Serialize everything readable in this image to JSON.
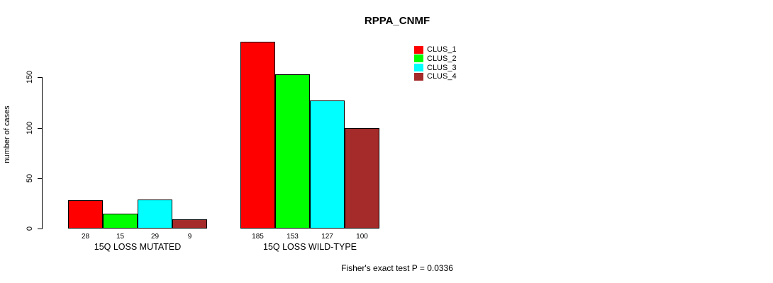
{
  "title": "RPPA_CNMF",
  "footer": "Fisher's exact test P = 0.0336",
  "chart_data": {
    "type": "bar",
    "title": "RPPA_CNMF",
    "xlabel": "",
    "ylabel": "number of cases",
    "categories": [
      "15Q LOSS MUTATED",
      "15Q LOSS WILD-TYPE"
    ],
    "series": [
      {
        "name": "CLUS_1",
        "color": "#FF0000",
        "values": [
          28,
          185
        ]
      },
      {
        "name": "CLUS_2",
        "color": "#00FF00",
        "values": [
          15,
          153
        ]
      },
      {
        "name": "CLUS_3",
        "color": "#00FFFF",
        "values": [
          29,
          127
        ]
      },
      {
        "name": "CLUS_4",
        "color": "#A52A2A",
        "values": [
          9,
          100
        ]
      }
    ],
    "bar_value_labels": [
      [
        28,
        15,
        29,
        9
      ],
      [
        185,
        153,
        127,
        100
      ]
    ],
    "yticks": [
      0,
      50,
      100,
      150
    ],
    "ylim": [
      0,
      185
    ],
    "grid": false,
    "legend_position": "top-right",
    "bar_border_color": "#000000",
    "annotation": "Fisher's exact test P = 0.0336"
  }
}
